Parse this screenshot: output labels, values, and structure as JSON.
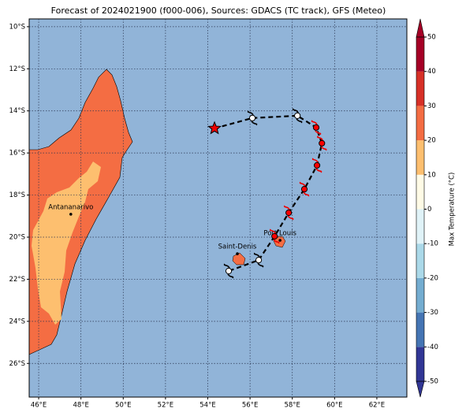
{
  "map": {
    "title": "Forecast of 2024021900 (f000-006), Sources: GDACS (TC track), GFS (Meteo)",
    "xlim": [
      45.55,
      63.42
    ],
    "ylim": [
      -9.63,
      -27.6
    ],
    "xticks": [
      {
        "value": 46,
        "label": "46°E"
      },
      {
        "value": 48,
        "label": "48°E"
      },
      {
        "value": 50,
        "label": "50°E"
      },
      {
        "value": 52,
        "label": "52°E"
      },
      {
        "value": 54,
        "label": "54°E"
      },
      {
        "value": 56,
        "label": "56°E"
      },
      {
        "value": 58,
        "label": "58°E"
      },
      {
        "value": 60,
        "label": "60°E"
      },
      {
        "value": 62,
        "label": "62°E"
      }
    ],
    "yticks": [
      {
        "value": -10,
        "label": "10°S"
      },
      {
        "value": -12,
        "label": "12°S"
      },
      {
        "value": -14,
        "label": "14°S"
      },
      {
        "value": -16,
        "label": "16°S"
      },
      {
        "value": -18,
        "label": "18°S"
      },
      {
        "value": -20,
        "label": "20°S"
      },
      {
        "value": -22,
        "label": "22°S"
      },
      {
        "value": -24,
        "label": "24°S"
      },
      {
        "value": -26,
        "label": "26°S"
      }
    ],
    "storm_position": {
      "lon": 54.32,
      "lat": -14.83
    },
    "track": [
      {
        "lon": 56.11,
        "lat": -14.34,
        "color": "white"
      },
      {
        "lon": 58.24,
        "lat": -14.23,
        "color": "white"
      },
      {
        "lon": 59.13,
        "lat": -14.79,
        "color": "red"
      },
      {
        "lon": 59.4,
        "lat": -15.54,
        "color": "red"
      },
      {
        "lon": 59.17,
        "lat": -16.59,
        "color": "red"
      },
      {
        "lon": 58.57,
        "lat": -17.72,
        "color": "red"
      },
      {
        "lon": 57.83,
        "lat": -18.84,
        "color": "red"
      },
      {
        "lon": 57.16,
        "lat": -19.96,
        "color": "red"
      },
      {
        "lon": 56.41,
        "lat": -21.09,
        "color": "white"
      },
      {
        "lon": 54.99,
        "lat": -21.61,
        "color": "white"
      }
    ],
    "cities": [
      {
        "name": "Antananarivo",
        "lon": 47.52,
        "lat": -18.91
      },
      {
        "name": "Port Louis",
        "lon": 57.42,
        "lat": -20.15
      },
      {
        "name": "Saint-Denis",
        "lon": 55.4,
        "lat": -20.79
      }
    ],
    "colorbar": {
      "label": "Max Temperature (°C)",
      "lim": [
        -50,
        50
      ],
      "ticks": [
        -50,
        -40,
        -30,
        -20,
        -10,
        0,
        10,
        20,
        30,
        40,
        50
      ],
      "colors": [
        "#313695",
        "#4575b4",
        "#74add1",
        "#abd9e9",
        "#e0f3f8",
        "#fffbe6",
        "#fdbf6f",
        "#f46d43",
        "#d73027",
        "#a50026"
      ]
    }
  }
}
